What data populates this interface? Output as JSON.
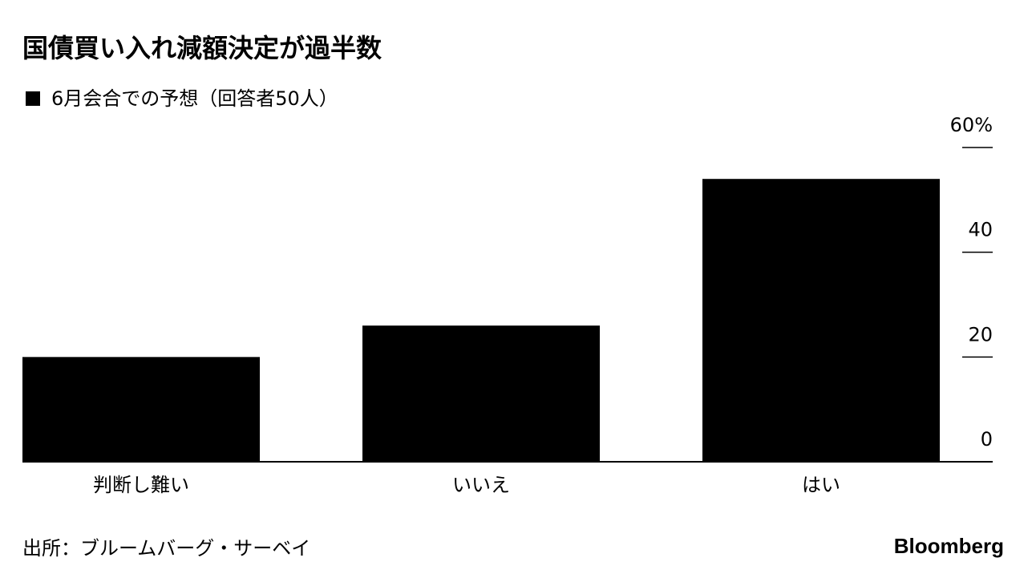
{
  "chart_data": {
    "type": "bar",
    "title": "国債買い入れ減額決定が過半数",
    "categories": [
      "判断し難い",
      "いいえ",
      "はい"
    ],
    "series": [
      {
        "name": "6月会合での予想（回答者50人）",
        "color": "#000000",
        "values": [
          20,
          26,
          54
        ]
      }
    ],
    "ylim": [
      0,
      60
    ],
    "yticks": [
      0,
      20,
      40,
      {
        "value": 60,
        "label": "60%"
      }
    ],
    "source": "出所：ブルームバーグ・サーベイ",
    "logo": "Bloomberg"
  }
}
